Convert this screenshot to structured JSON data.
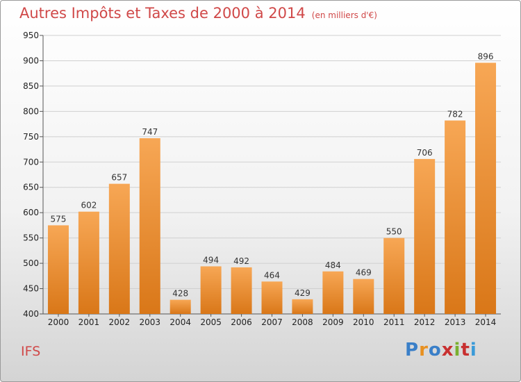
{
  "title": "Autres Impôts et Taxes de 2000 à 2014",
  "unit_note": "(en milliers d'€)",
  "commune": "IFS",
  "logo": {
    "text": "Proxiti",
    "letter_colors": [
      "#3a7fc8",
      "#e89020",
      "#3a7fc8",
      "#c83030",
      "#7ab030",
      "#c83030",
      "#3a9ad8"
    ]
  },
  "colors": {
    "bar_light": "#f7a755",
    "bar_dark": "#d97718",
    "title": "#d04848",
    "grid": "#d0d0d0"
  },
  "chart_data": {
    "type": "bar",
    "categories": [
      "2000",
      "2001",
      "2002",
      "2003",
      "2004",
      "2005",
      "2006",
      "2007",
      "2008",
      "2009",
      "2010",
      "2011",
      "2012",
      "2013",
      "2014"
    ],
    "values": [
      575,
      602,
      657,
      747,
      428,
      494,
      492,
      464,
      429,
      484,
      469,
      550,
      706,
      782,
      896
    ],
    "data_labels": [
      "575",
      "602",
      "657",
      "747",
      "428",
      "494",
      "492",
      "464",
      "429",
      "484",
      "469",
      "550",
      "706",
      "782",
      "896"
    ],
    "y_ticks": [
      "400",
      "450",
      "500",
      "550",
      "600",
      "650",
      "700",
      "750",
      "800",
      "850",
      "900",
      "950"
    ],
    "ylim": [
      400,
      950
    ],
    "grid": true,
    "legend": "none"
  }
}
